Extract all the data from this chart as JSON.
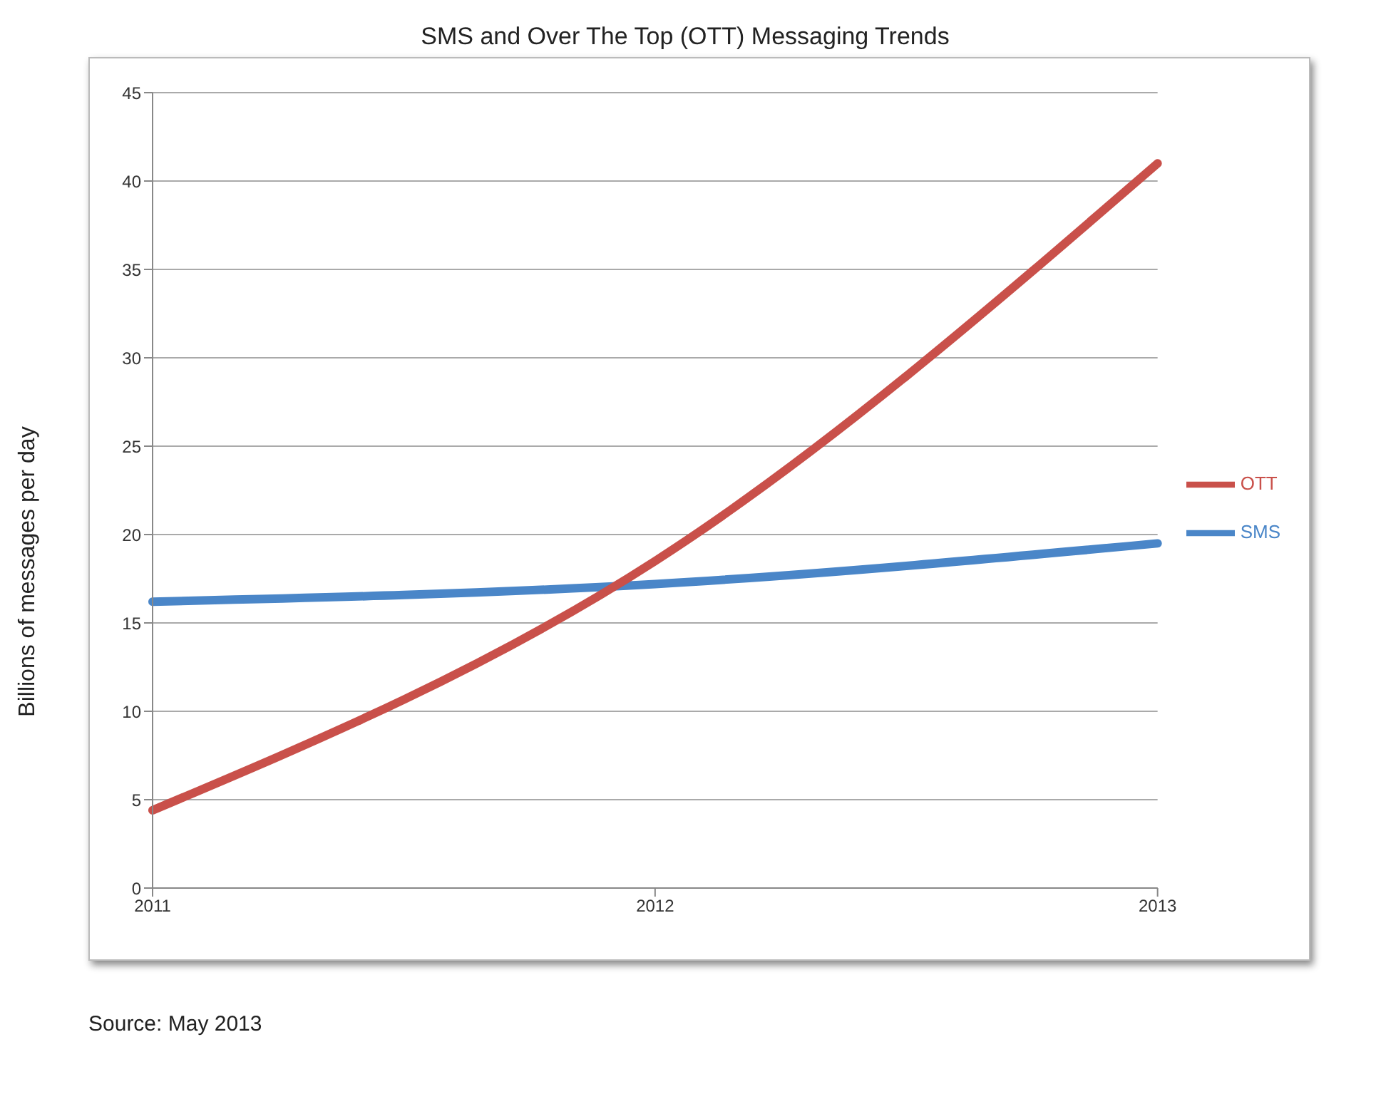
{
  "chart_data": {
    "type": "line",
    "title": "SMS and Over The Top (OTT) Messaging Trends",
    "ylabel": "Billions of messages per day",
    "categories": [
      "2011",
      "2012",
      "2013"
    ],
    "series": [
      {
        "name": "SMS",
        "color": "#4a86c8",
        "values": [
          16.2,
          17.2,
          19.5
        ]
      },
      {
        "name": "OTT",
        "color": "#c9504a",
        "values": [
          4.4,
          18.5,
          41
        ]
      }
    ],
    "ylim": [
      0,
      45
    ],
    "yticks": [
      0,
      5,
      10,
      15,
      20,
      25,
      30,
      35,
      40,
      45
    ],
    "grid": "y",
    "legend": "right",
    "marker": "none",
    "line_style": "solid",
    "annotations": [
      "Source: May 2013"
    ]
  }
}
